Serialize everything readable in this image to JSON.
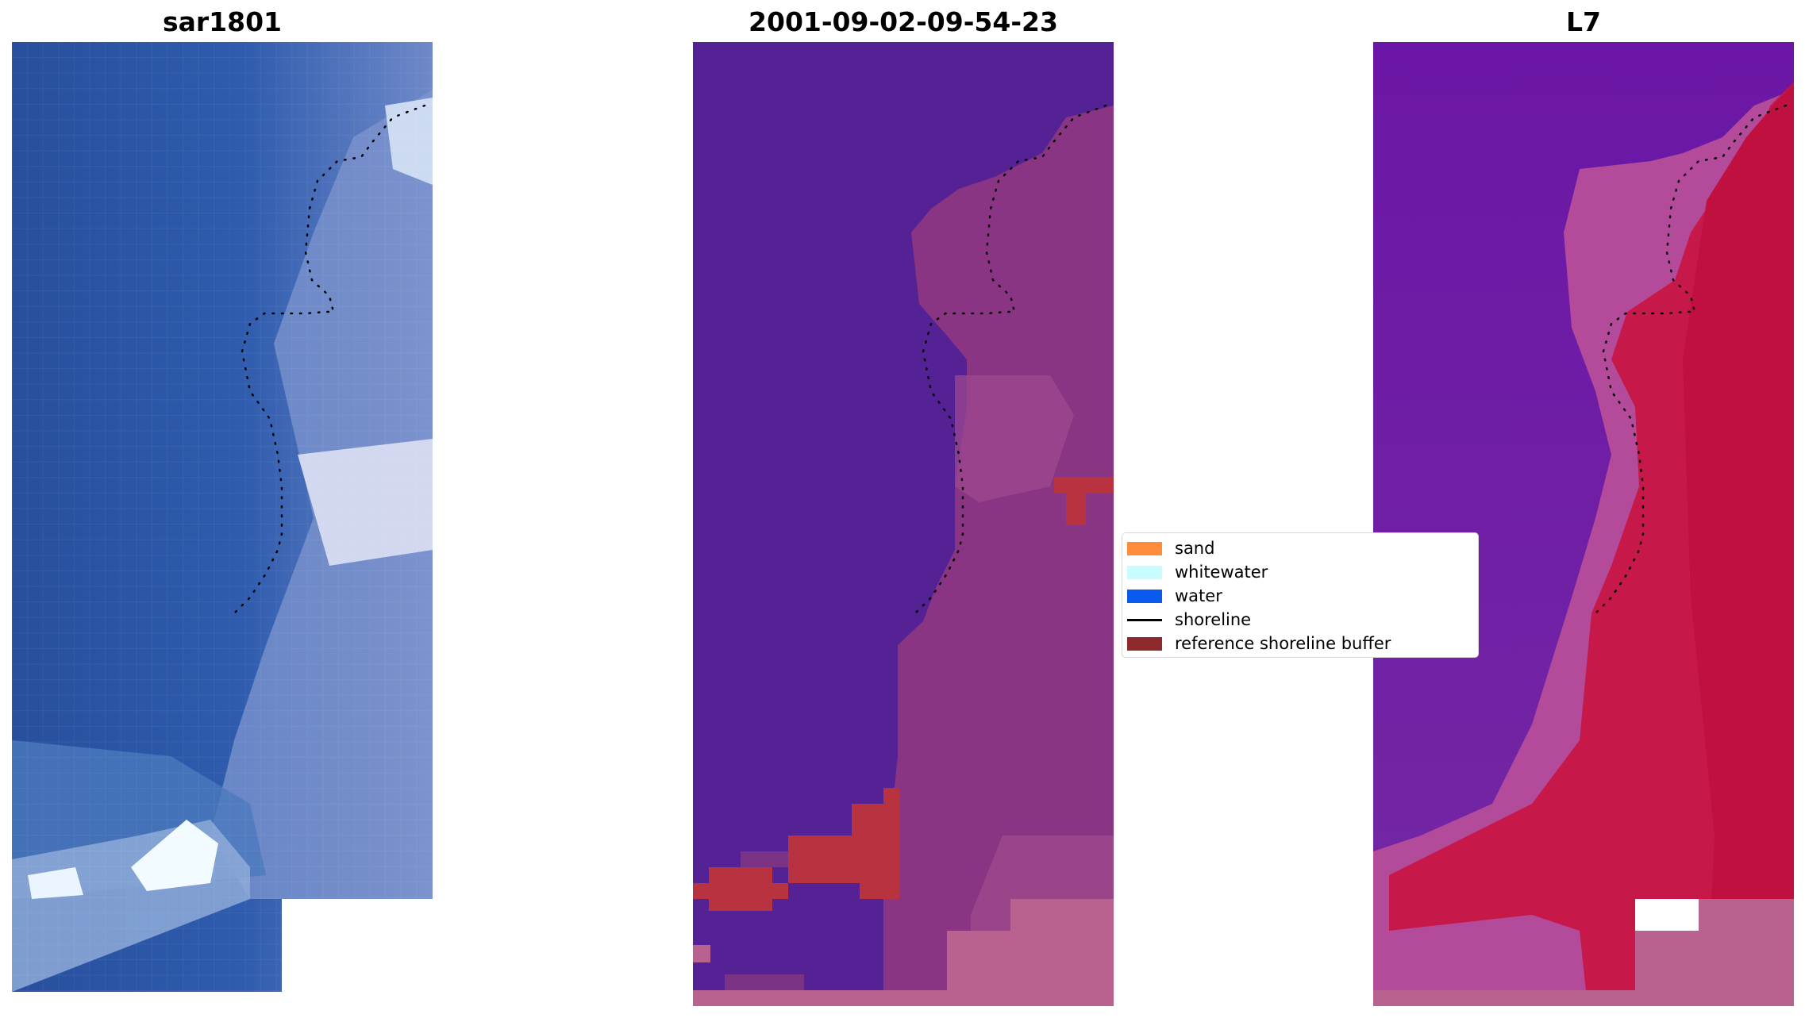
{
  "panels": [
    {
      "title": "sar1801"
    },
    {
      "title": "2001-09-02-09-54-23"
    },
    {
      "title": "L7"
    }
  ],
  "legend": {
    "items": [
      {
        "label": "sand",
        "kind": "patch",
        "color": "#ff8c3a"
      },
      {
        "label": "whitewater",
        "kind": "patch",
        "color": "#c8fcff"
      },
      {
        "label": "water",
        "kind": "patch",
        "color": "#0b5af0"
      },
      {
        "label": "shoreline",
        "kind": "line",
        "color": "#000000"
      },
      {
        "label": "reference shoreline buffer",
        "kind": "patch",
        "color": "#8e2a2e"
      }
    ]
  },
  "colors": {
    "rgb_water": "#2f5aa8",
    "rgb_surf": "#8ea3d4",
    "rgb_bright": "#eef6ff",
    "class_water": "#542295",
    "class_land": "#8d3b86",
    "class_sand_overlay": "#b9628f",
    "class_buffer": "#b8333f",
    "swir_water": "#6a14a6",
    "swir_land": "#c4183d",
    "nodata": "#ffffff"
  }
}
